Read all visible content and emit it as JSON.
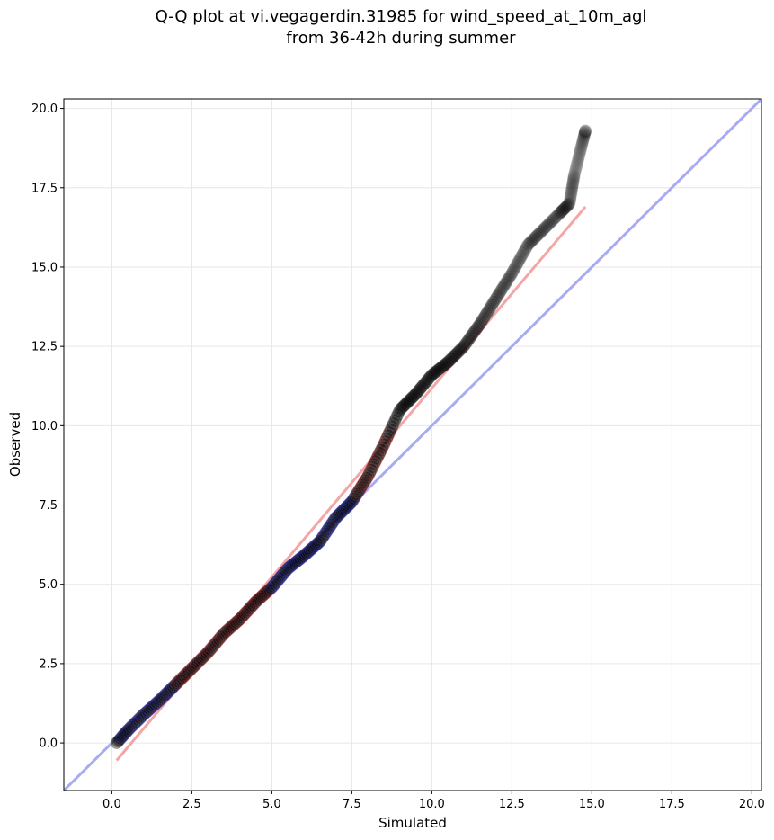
{
  "chart_data": {
    "type": "scatter",
    "title": "Q-Q plot at vi.vegagerdin.31985 for wind_speed_at_10m_agl",
    "subtitle": "from 36-42h during summer",
    "xlabel": "Simulated",
    "ylabel": "Observed",
    "xlim": [
      -1.5,
      20.3
    ],
    "ylim": [
      -1.5,
      20.3
    ],
    "xticks": [
      "0.0",
      "2.5",
      "5.0",
      "7.5",
      "10.0",
      "12.5",
      "15.0",
      "17.5",
      "20.0"
    ],
    "yticks": [
      "0.0",
      "2.5",
      "5.0",
      "7.5",
      "10.0",
      "12.5",
      "15.0",
      "17.5",
      "20.0"
    ],
    "grid": true,
    "reference_line": {
      "slope": 1,
      "intercept": 0,
      "color": "#a9abf2"
    },
    "fit_line": {
      "x": [
        0.15,
        14.8
      ],
      "y": [
        -0.55,
        16.9
      ],
      "color": "#f4a6a6"
    },
    "point_color": "#000000",
    "quantile_knots": {
      "x": [
        0.15,
        0.5,
        1.0,
        1.5,
        2.0,
        2.5,
        3.0,
        3.5,
        4.0,
        4.5,
        5.0,
        5.5,
        6.0,
        6.5,
        7.0,
        7.5,
        8.0,
        8.5,
        9.0,
        9.5,
        10.0,
        10.5,
        11.0,
        11.5,
        12.0,
        12.5,
        13.0,
        13.5,
        14.0,
        14.3,
        14.45,
        14.8
      ],
      "y": [
        0.0,
        0.4,
        0.9,
        1.35,
        1.85,
        2.35,
        2.85,
        3.45,
        3.9,
        4.45,
        4.9,
        5.5,
        5.9,
        6.35,
        7.1,
        7.6,
        8.4,
        9.4,
        10.5,
        11.0,
        11.6,
        12.0,
        12.5,
        13.2,
        14.0,
        14.8,
        15.7,
        16.2,
        16.7,
        17.0,
        17.9,
        19.3
      ]
    },
    "n_points": 420,
    "highlight_segments": [
      {
        "from_x": 0.3,
        "to_x": 2.0,
        "color": "#2a2aa6"
      },
      {
        "from_x": 2.0,
        "to_x": 5.0,
        "color": "#8a2222"
      },
      {
        "from_x": 5.0,
        "to_x": 7.6,
        "color": "#2a2aa6"
      },
      {
        "from_x": 7.6,
        "to_x": 8.7,
        "color": "#8a2222"
      }
    ]
  }
}
